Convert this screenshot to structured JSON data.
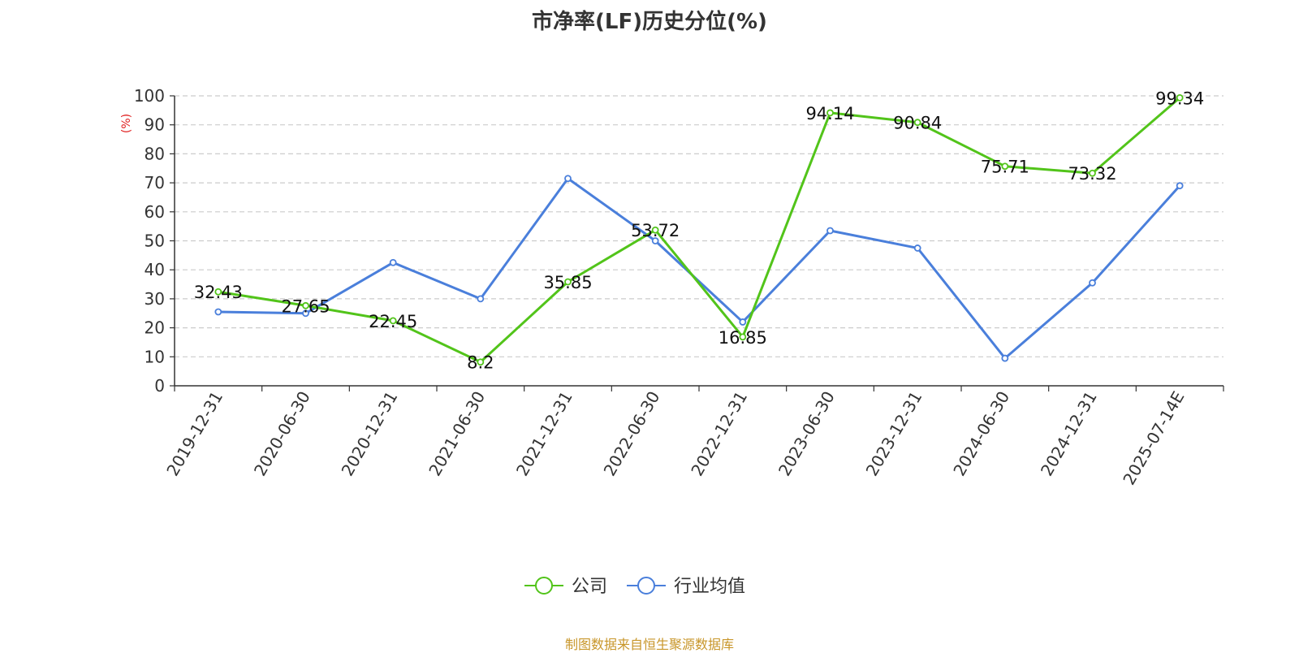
{
  "chart_data": {
    "type": "line",
    "title": "市净率(LF)历史分位(%)",
    "ylabel": "(%)",
    "xlabel": "",
    "categories": [
      "2019-12-31",
      "2020-06-30",
      "2020-12-31",
      "2021-06-30",
      "2021-12-31",
      "2022-06-30",
      "2022-12-31",
      "2023-06-30",
      "2023-12-31",
      "2024-06-30",
      "2024-12-31",
      "2025-07-14E"
    ],
    "ylim": [
      0,
      100
    ],
    "yticks": [
      "0",
      "10",
      "20",
      "30",
      "40",
      "50",
      "60",
      "70",
      "80",
      "90",
      "100"
    ],
    "grid": true,
    "legend_position": "bottom",
    "series": [
      {
        "name": "公司",
        "color": "#52c41a",
        "values": [
          32.43,
          27.65,
          22.45,
          8.2,
          35.85,
          53.72,
          16.85,
          94.14,
          90.84,
          75.71,
          73.32,
          99.34
        ],
        "labels": [
          "32.43",
          "27.65",
          "22.45",
          "8.2",
          "35.85",
          "53.72",
          "16.85",
          "94.14",
          "90.84",
          "75.71",
          "73.32",
          "99.34"
        ]
      },
      {
        "name": "行业均值",
        "color": "#4a7fdb",
        "values": [
          25.5,
          25.0,
          42.5,
          30.0,
          71.5,
          50.0,
          22.0,
          53.5,
          47.5,
          9.5,
          35.5,
          69.0
        ]
      }
    ]
  },
  "source": "制图数据来自恒生聚源数据库"
}
